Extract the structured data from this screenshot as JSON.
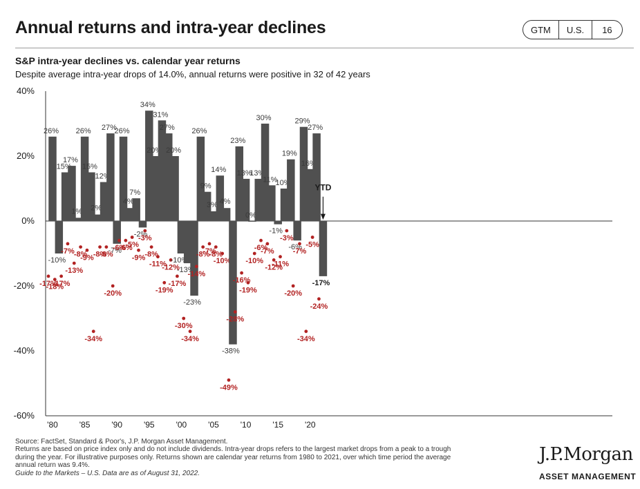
{
  "header": {
    "title": "Annual returns and intra-year declines",
    "badge": [
      "GTM",
      "U.S.",
      "16"
    ]
  },
  "subtitle": "S&P intra-year declines vs. calendar year returns",
  "description": "Despite average intra-year drops of 14.0%, annual returns were positive in 32 of 42 years",
  "chart_data": {
    "type": "bar",
    "title": "S&P intra-year declines vs. calendar year returns",
    "y_ticks": [
      "40%",
      "20%",
      "0%",
      "-20%",
      "-40%",
      "-60%"
    ],
    "ylim": [
      -60,
      40
    ],
    "x_tick_labels": [
      "'80",
      "'85",
      "'90",
      "'95",
      "'00",
      "'05",
      "'10",
      "'15",
      "'20"
    ],
    "x_tick_years": [
      1980,
      1985,
      1990,
      1995,
      2000,
      2005,
      2010,
      2015,
      2020
    ],
    "years": [
      1980,
      1981,
      1982,
      1983,
      1984,
      1985,
      1986,
      1987,
      1988,
      1989,
      1990,
      1991,
      1992,
      1993,
      1994,
      1995,
      1996,
      1997,
      1998,
      1999,
      2000,
      2001,
      2002,
      2003,
      2004,
      2005,
      2006,
      2007,
      2008,
      2009,
      2010,
      2011,
      2012,
      2013,
      2014,
      2015,
      2016,
      2017,
      2018,
      2019,
      2020,
      2021,
      2022
    ],
    "series": [
      {
        "values": [
          26,
          -10,
          15,
          17,
          1,
          26,
          15,
          2,
          12,
          27,
          -7,
          26,
          4,
          7,
          -2,
          34,
          20,
          31,
          27,
          20,
          -10,
          -13,
          -23,
          26,
          9,
          3,
          14,
          4,
          -38,
          23,
          13,
          0,
          13,
          30,
          11,
          -1,
          10,
          19,
          -6,
          29,
          16,
          27,
          -17
        ],
        "color": "#505050"
      },
      {
        "values": [
          -17,
          -18,
          -17,
          -7,
          -13,
          -8,
          -9,
          -34,
          -8,
          -8,
          -20,
          -6,
          -6,
          -5,
          -9,
          -3,
          -8,
          -11,
          -19,
          -12,
          -17,
          -30,
          -34,
          -14,
          -8,
          -7,
          -8,
          -10,
          -49,
          -28,
          -16,
          -19,
          -10,
          -6,
          -7,
          -12,
          -11,
          -3,
          -20,
          -7,
          -34,
          -5,
          -24
        ],
        "color": "#b22222"
      }
    ],
    "ytd_label": "YTD",
    "grid": false
  },
  "footer": {
    "source": "Source: FactSet, Standard & Poor's, J.P. Morgan Asset Management.",
    "note1": "Returns are based on price index only and do not include dividends. Intra-year drops refers to the largest market drops from a peak to a trough",
    "note2": "during the year. For illustrative purposes only. Returns shown are calendar year returns from 1980 to 2021, over which time period the average",
    "note3": "annual return was 9.4%.",
    "guide": "Guide to the Markets – U.S. Data are as of August 31, 2022."
  },
  "logo": {
    "name": "J.P.Morgan",
    "sub": "ASSET MANAGEMENT"
  }
}
